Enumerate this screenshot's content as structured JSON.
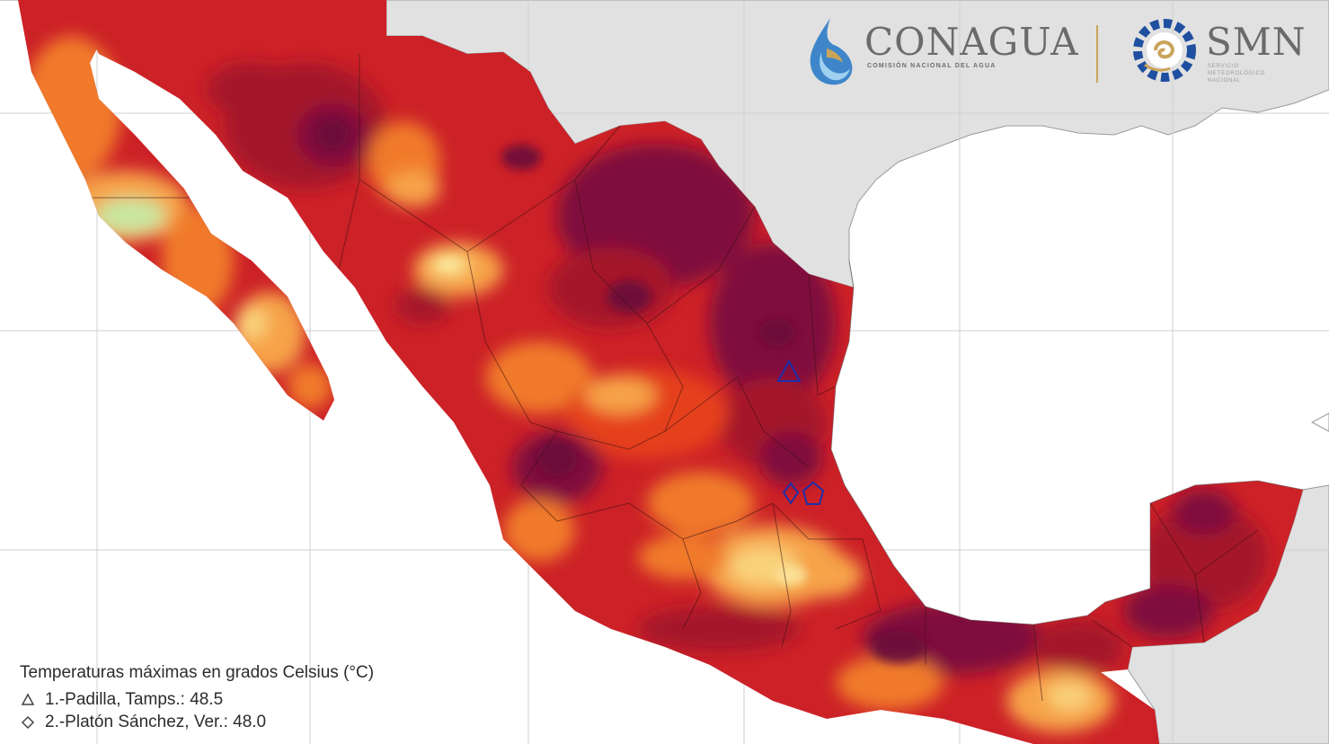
{
  "map": {
    "colors": {
      "background": "#ffffff",
      "land": "#e1e1e1",
      "grid": "#cfcfcf",
      "temp_dark": "#7f0f3c",
      "temp_deep_red": "#a5122a",
      "temp_red": "#cc2127",
      "temp_orange_red": "#e5401f",
      "temp_orange": "#f07a2b",
      "temp_light_orange": "#f6a348",
      "temp_yellow": "#f9d27a",
      "temp_light_green": "#c9e69f",
      "station_marker": "#1e2fa8"
    }
  },
  "logos": {
    "conagua_name": "CONAGUA",
    "conagua_subtitle": "COMISIÓN NACIONAL DEL AGUA",
    "smn_name": "SMN",
    "smn_subtitle": "SERVICIO METEOROLÓGICO NACIONAL"
  },
  "legend": {
    "title": "Temperaturas máximas en grados Celsius (°C)",
    "items": [
      {
        "marker": "triangle-icon",
        "label": "1.-Padilla, Tamps.: 48.5"
      },
      {
        "marker": "diamond-icon",
        "label": "2.-Platón Sánchez, Ver.: 48.0"
      }
    ]
  }
}
